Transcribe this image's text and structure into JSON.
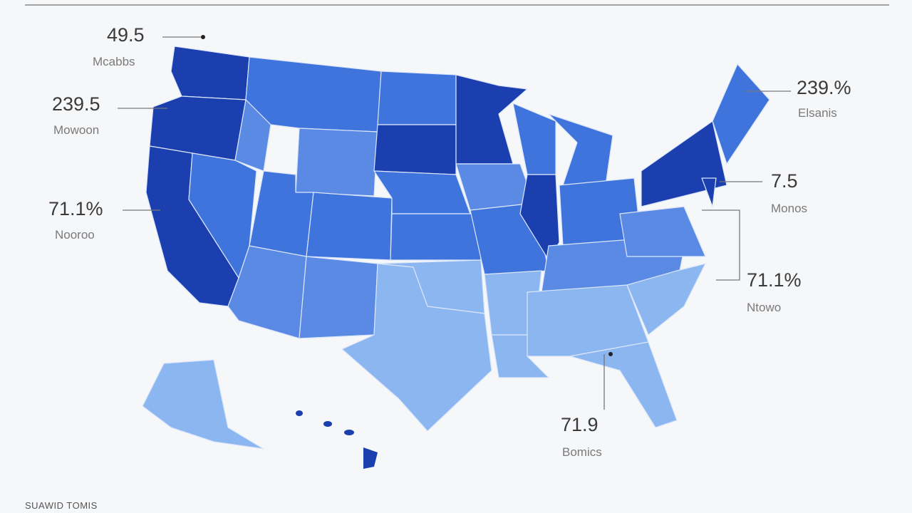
{
  "callouts": [
    {
      "value": "49.5",
      "label": "Mcabbs"
    },
    {
      "value": "239.5",
      "label": "Mowoon"
    },
    {
      "value": "71.1%",
      "label": "Nooroo"
    },
    {
      "value": "239.%",
      "label": "Elsanis"
    },
    {
      "value": "7.5",
      "label": "Monos"
    },
    {
      "value": "71.1%",
      "label": "Ntowo"
    },
    {
      "value": "71.9",
      "label": "Bomics"
    }
  ],
  "footer": "SUAWID TOMIS"
}
